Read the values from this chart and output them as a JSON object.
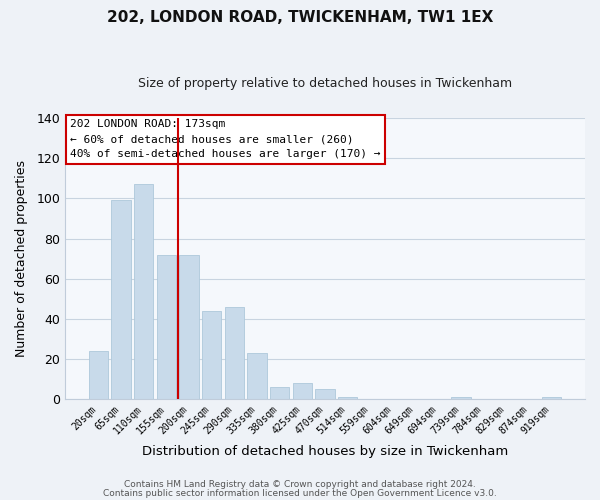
{
  "title": "202, LONDON ROAD, TWICKENHAM, TW1 1EX",
  "subtitle": "Size of property relative to detached houses in Twickenham",
  "xlabel": "Distribution of detached houses by size in Twickenham",
  "ylabel": "Number of detached properties",
  "bar_labels": [
    "20sqm",
    "65sqm",
    "110sqm",
    "155sqm",
    "200sqm",
    "245sqm",
    "290sqm",
    "335sqm",
    "380sqm",
    "425sqm",
    "470sqm",
    "514sqm",
    "559sqm",
    "604sqm",
    "649sqm",
    "694sqm",
    "739sqm",
    "784sqm",
    "829sqm",
    "874sqm",
    "919sqm"
  ],
  "bar_values": [
    24,
    99,
    107,
    72,
    72,
    44,
    46,
    23,
    6,
    8,
    5,
    1,
    0,
    0,
    0,
    0,
    1,
    0,
    0,
    0,
    1
  ],
  "bar_color": "#c8daea",
  "bar_edge_color": "#aec8db",
  "vline_x": 3.5,
  "vline_color": "#cc0000",
  "ylim": [
    0,
    140
  ],
  "yticks": [
    0,
    20,
    40,
    60,
    80,
    100,
    120,
    140
  ],
  "annotation_title": "202 LONDON ROAD: 173sqm",
  "annotation_line1": "← 60% of detached houses are smaller (260)",
  "annotation_line2": "40% of semi-detached houses are larger (170) →",
  "footer1": "Contains HM Land Registry data © Crown copyright and database right 2024.",
  "footer2": "Contains public sector information licensed under the Open Government Licence v3.0.",
  "bg_color": "#eef2f7",
  "plot_bg_color": "#f5f8fc",
  "grid_color": "#c8d4e0"
}
